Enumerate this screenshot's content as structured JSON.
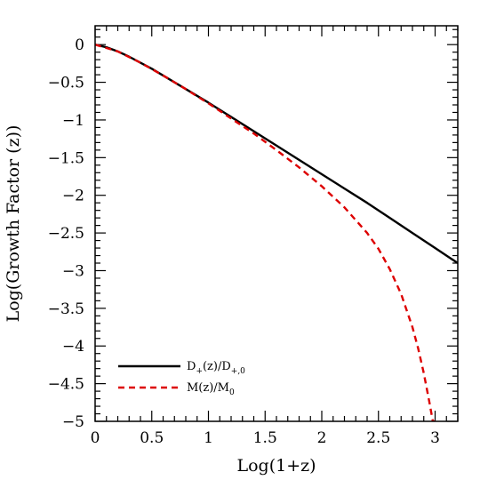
{
  "chart_data": {
    "type": "line",
    "title": "",
    "xlabel": "Log(1+z)",
    "ylabel": "Log(Growth Factor (z))",
    "xlim": [
      0,
      3.2
    ],
    "ylim": [
      -5,
      0.25
    ],
    "grid": false,
    "legend_position": "bottom-left",
    "x_ticks": [
      0,
      0.5,
      1,
      1.5,
      2,
      2.5,
      3
    ],
    "x_tick_labels": [
      "0",
      "0.5",
      "1",
      "1.5",
      "2",
      "2.5",
      "3"
    ],
    "y_ticks": [
      0,
      -0.5,
      -1,
      -1.5,
      -2,
      -2.5,
      -3,
      -3.5,
      -4,
      -4.5,
      -5
    ],
    "y_tick_labels": [
      "0",
      "−0.5",
      "−1",
      "−1.5",
      "−2",
      "−2.5",
      "−3",
      "−3.5",
      "−4",
      "−4.5",
      "−5"
    ],
    "series": [
      {
        "name": "D+(z)/D+,0",
        "legend": {
          "main1": "D",
          "sub1": "+",
          "main2": "(z)/D",
          "sub2": "+,0"
        },
        "color": "#000000",
        "dash": "solid",
        "x": [
          0,
          0.1,
          0.2,
          0.3,
          0.4,
          0.5,
          0.6,
          0.7,
          0.8,
          0.9,
          1.0,
          1.2,
          1.4,
          1.6,
          1.8,
          2.0,
          2.2,
          2.4,
          2.6,
          2.8,
          3.0,
          3.2
        ],
        "y": [
          0,
          -0.035,
          -0.09,
          -0.16,
          -0.24,
          -0.32,
          -0.41,
          -0.5,
          -0.59,
          -0.68,
          -0.77,
          -0.96,
          -1.15,
          -1.34,
          -1.53,
          -1.72,
          -1.91,
          -2.1,
          -2.3,
          -2.5,
          -2.7,
          -2.9
        ]
      },
      {
        "name": "M(z)/M0",
        "legend": {
          "main1": "M(z)/M",
          "sub1": "0",
          "main2": "",
          "sub2": ""
        },
        "color": "#dd0000",
        "dash": "dashed",
        "x": [
          0,
          0.2,
          0.4,
          0.6,
          0.8,
          1.0,
          1.2,
          1.4,
          1.6,
          1.8,
          2.0,
          2.2,
          2.4,
          2.5,
          2.6,
          2.7,
          2.8,
          2.85,
          2.9,
          2.95,
          2.98,
          3.0
        ],
        "y": [
          0,
          -0.09,
          -0.24,
          -0.41,
          -0.59,
          -0.78,
          -0.98,
          -1.18,
          -1.4,
          -1.63,
          -1.88,
          -2.16,
          -2.5,
          -2.71,
          -2.98,
          -3.31,
          -3.75,
          -4.03,
          -4.36,
          -4.75,
          -5.0,
          -5.0
        ]
      }
    ]
  }
}
